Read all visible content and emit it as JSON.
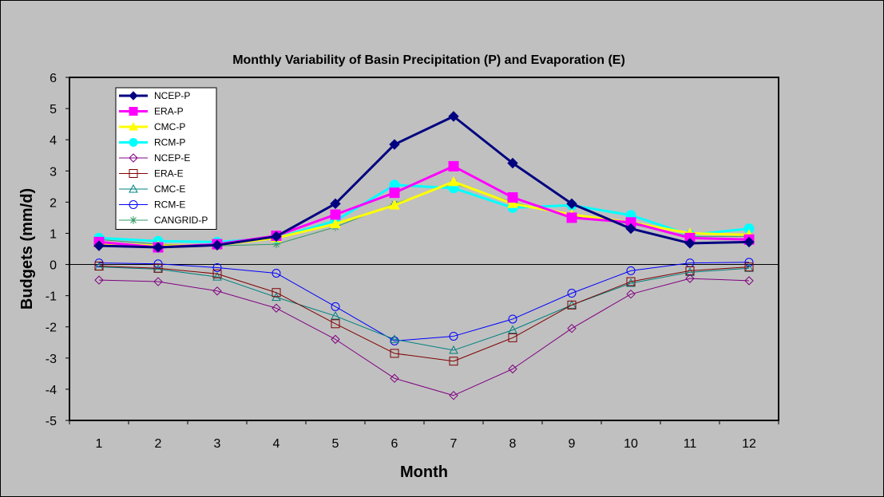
{
  "chart_data": {
    "type": "line",
    "title": "Monthly Variability of Basin Precipitation (P) and Evaporation (E)",
    "xlabel": "Month",
    "ylabel": "Budgets (mm/d)",
    "x": [
      1,
      2,
      3,
      4,
      5,
      6,
      7,
      8,
      9,
      10,
      11,
      12
    ],
    "xlim": [
      0.5,
      12.5
    ],
    "ylim": [
      -5,
      6
    ],
    "yticks": [
      -5,
      -4,
      -3,
      -2,
      -1,
      0,
      1,
      2,
      3,
      4,
      5,
      6
    ],
    "grid": false,
    "legend_position": "top-left",
    "plot_background": "#c0c0c0",
    "series": [
      {
        "name": "NCEP-P",
        "color": "#000080",
        "marker": "diamond-filled",
        "weight": "bold",
        "values": [
          0.6,
          0.55,
          0.62,
          0.9,
          1.95,
          3.85,
          4.75,
          3.25,
          1.95,
          1.15,
          0.68,
          0.72
        ]
      },
      {
        "name": "ERA-P",
        "color": "#ff00ff",
        "marker": "square-filled",
        "weight": "bold",
        "values": [
          0.72,
          0.55,
          0.65,
          0.92,
          1.6,
          2.3,
          3.15,
          2.15,
          1.5,
          1.35,
          0.85,
          0.8
        ]
      },
      {
        "name": "CMC-P",
        "color": "#ffff00",
        "marker": "triangle-filled",
        "weight": "bold",
        "values": [
          0.68,
          0.6,
          0.62,
          0.85,
          1.3,
          1.9,
          2.65,
          1.95,
          1.6,
          1.35,
          1.0,
          0.95
        ]
      },
      {
        "name": "RCM-P",
        "color": "#00ffff",
        "marker": "circle-filled",
        "weight": "bold",
        "values": [
          0.85,
          0.75,
          0.72,
          0.85,
          1.4,
          2.55,
          2.45,
          1.82,
          1.9,
          1.58,
          0.95,
          1.15
        ]
      },
      {
        "name": "NCEP-E",
        "color": "#800080",
        "marker": "diamond-open",
        "weight": "thin",
        "values": [
          -0.5,
          -0.55,
          -0.85,
          -1.4,
          -2.4,
          -3.65,
          -4.2,
          -3.35,
          -2.05,
          -0.95,
          -0.45,
          -0.52
        ]
      },
      {
        "name": "ERA-E",
        "color": "#800000",
        "marker": "square-open",
        "weight": "thin",
        "values": [
          -0.05,
          -0.12,
          -0.3,
          -0.9,
          -1.9,
          -2.85,
          -3.1,
          -2.35,
          -1.3,
          -0.55,
          -0.2,
          -0.08
        ]
      },
      {
        "name": "CMC-E",
        "color": "#008080",
        "marker": "triangle-open",
        "weight": "thin",
        "values": [
          -0.08,
          -0.15,
          -0.4,
          -1.05,
          -1.65,
          -2.4,
          -2.75,
          -2.1,
          -1.3,
          -0.6,
          -0.25,
          -0.12
        ]
      },
      {
        "name": "RCM-E",
        "color": "#0000ff",
        "marker": "circle-open",
        "weight": "thin",
        "values": [
          0.05,
          0.02,
          -0.1,
          -0.28,
          -1.35,
          -2.45,
          -2.3,
          -1.75,
          -0.92,
          -0.2,
          0.05,
          0.07
        ]
      },
      {
        "name": "CANGRID-P",
        "color": "#339966",
        "marker": "star",
        "weight": "thin",
        "values": [
          0.8,
          0.65,
          0.6,
          0.65,
          1.2,
          1.95,
          2.6,
          2.0,
          1.55,
          1.3,
          0.9,
          0.9
        ]
      }
    ]
  }
}
